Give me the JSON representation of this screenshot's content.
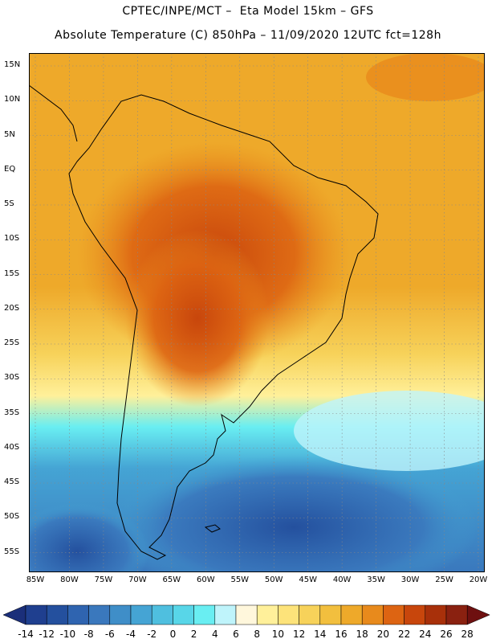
{
  "header": {
    "line1": "CPTEC/INPE/MCT –  Eta Model 15km – GFS",
    "line2": "Absolute Temperature (C) 850hPa – 11/09/2020 12UTC fct=128h"
  },
  "axes": {
    "lat_labels": [
      "15N",
      "10N",
      "5N",
      "EQ",
      "5S",
      "10S",
      "15S",
      "20S",
      "25S",
      "30S",
      "35S",
      "40S",
      "45S",
      "50S",
      "55S"
    ],
    "lon_labels": [
      "85W",
      "80W",
      "75W",
      "70W",
      "65W",
      "60W",
      "55W",
      "50W",
      "45W",
      "40W",
      "35W",
      "30W",
      "25W",
      "20W"
    ]
  },
  "colorbar": {
    "labels": [
      "-14",
      "-12",
      "-10",
      "-8",
      "-6",
      "-4",
      "-2",
      "0",
      "2",
      "4",
      "6",
      "8",
      "10",
      "12",
      "14",
      "16",
      "18",
      "20",
      "22",
      "24",
      "26",
      "28"
    ],
    "colors": [
      "#1f3f8f",
      "#24509e",
      "#2f64b0",
      "#3a78bd",
      "#3f8ec8",
      "#45a4d4",
      "#4fbfdf",
      "#58d6e8",
      "#69eef2",
      "#bff4fb",
      "#fff7dc",
      "#fff09a",
      "#fde37a",
      "#f7d25a",
      "#f2bf3e",
      "#eea92a",
      "#e88a1c",
      "#dd6412",
      "#c8460c",
      "#a8300a",
      "#8a2110"
    ],
    "arrow_low": "#1b2f7a",
    "arrow_high": "#6e1010"
  }
}
